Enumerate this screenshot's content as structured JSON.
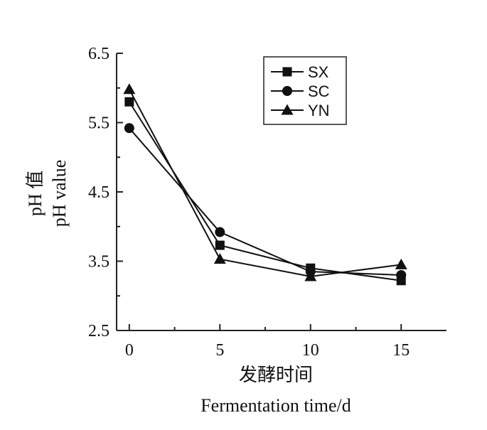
{
  "chart_data": {
    "type": "line",
    "title": "",
    "xlabel_cn": "发酵时间",
    "xlabel_en": "Fermentation time/d",
    "ylabel_cn": "pH 值",
    "ylabel_en": "pH value",
    "x": [
      0,
      5,
      10,
      15
    ],
    "x_ticks": [
      "0",
      "5",
      "10",
      "15"
    ],
    "y_ticks": [
      "2.5",
      "3.5",
      "4.5",
      "5.5",
      "6.5"
    ],
    "xlim": [
      -0.7,
      17.5
    ],
    "ylim": [
      2.5,
      6.5
    ],
    "legend_position": "top-right",
    "grid": false,
    "series": [
      {
        "name": "SX",
        "marker": "square",
        "values": [
          5.8,
          3.73,
          3.4,
          3.22
        ]
      },
      {
        "name": "SC",
        "marker": "circle",
        "values": [
          5.42,
          3.92,
          3.35,
          3.3
        ]
      },
      {
        "name": "YN",
        "marker": "triangle",
        "values": [
          5.98,
          3.53,
          3.28,
          3.45
        ]
      }
    ]
  }
}
